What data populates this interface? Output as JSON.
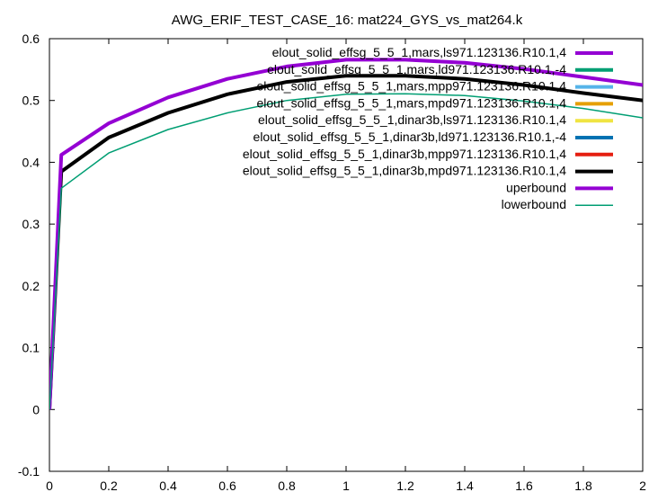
{
  "chart_data": {
    "type": "line",
    "title": "AWG_ERIF_TEST_CASE_16: mat224_GYS_vs_mat264.k",
    "xlabel": "",
    "ylabel": "",
    "xlim": [
      0,
      2
    ],
    "ylim": [
      -0.1,
      0.6
    ],
    "x_ticks": [
      0,
      0.2,
      0.4,
      0.6,
      0.8,
      1,
      1.2,
      1.4,
      1.6,
      1.8,
      2
    ],
    "x_tick_labels": [
      "0",
      "0.2",
      "0.4",
      "0.6",
      "0.8",
      "1",
      "1.2",
      "1.4",
      "1.6",
      "1.8",
      "2"
    ],
    "y_ticks": [
      -0.1,
      0,
      0.1,
      0.2,
      0.3,
      0.4,
      0.5,
      0.6
    ],
    "y_tick_labels": [
      "-0.1",
      "0",
      "0.1",
      "0.2",
      "0.3",
      "0.4",
      "0.5",
      "0.6"
    ],
    "grid": false,
    "legend_position": "top-right",
    "series": [
      {
        "name": "elout_solid_effsg_5_5_1,mars,ls971.123136.R10.1,4",
        "color": "#9400d3",
        "width": 4,
        "draw": false,
        "x": [
          0,
          0.04,
          0.2,
          0.4,
          0.6,
          0.8,
          1.0,
          1.2,
          1.4,
          1.6,
          1.8,
          2.0
        ],
        "y": [
          0,
          0.385,
          0.44,
          0.48,
          0.51,
          0.53,
          0.54,
          0.54,
          0.535,
          0.525,
          0.512,
          0.5
        ]
      },
      {
        "name": "elout_solid_effsg_5_5_1,mars,ld971.123136.R10.1,-4",
        "color": "#009e73",
        "width": 4,
        "draw": false,
        "x": [
          0,
          0.04,
          0.2,
          0.4,
          0.6,
          0.8,
          1.0,
          1.2,
          1.4,
          1.6,
          1.8,
          2.0
        ],
        "y": [
          0,
          0.385,
          0.44,
          0.48,
          0.51,
          0.53,
          0.54,
          0.54,
          0.535,
          0.525,
          0.512,
          0.5
        ]
      },
      {
        "name": "elout_solid_effsg_5_5_1,mars,mpp971.123136.R10.1,4",
        "color": "#56b4e9",
        "width": 4,
        "draw": false,
        "x": [
          0,
          0.04,
          0.2,
          0.4,
          0.6,
          0.8,
          1.0,
          1.2,
          1.4,
          1.6,
          1.8,
          2.0
        ],
        "y": [
          0,
          0.385,
          0.44,
          0.48,
          0.51,
          0.53,
          0.54,
          0.54,
          0.535,
          0.525,
          0.512,
          0.5
        ]
      },
      {
        "name": "elout_solid_effsg_5_5_1,mars,mpd971.123136.R10.1,4",
        "color": "#e69f00",
        "width": 4,
        "draw": false,
        "x": [
          0,
          0.04,
          0.2,
          0.4,
          0.6,
          0.8,
          1.0,
          1.2,
          1.4,
          1.6,
          1.8,
          2.0
        ],
        "y": [
          0,
          0.385,
          0.44,
          0.48,
          0.51,
          0.53,
          0.54,
          0.54,
          0.535,
          0.525,
          0.512,
          0.5
        ]
      },
      {
        "name": "elout_solid_effsg_5_5_1,dinar3b,ls971.123136.R10.1,4",
        "color": "#f0e442",
        "width": 4,
        "draw": false,
        "x": [
          0,
          0.04,
          0.2,
          0.4,
          0.6,
          0.8,
          1.0,
          1.2,
          1.4,
          1.6,
          1.8,
          2.0
        ],
        "y": [
          0,
          0.385,
          0.44,
          0.48,
          0.51,
          0.53,
          0.54,
          0.54,
          0.535,
          0.525,
          0.512,
          0.5
        ]
      },
      {
        "name": "elout_solid_effsg_5_5_1,dinar3b,ld971.123136.R10.1,-4",
        "color": "#0072b2",
        "width": 4,
        "draw": false,
        "x": [
          0,
          0.04,
          0.2,
          0.4,
          0.6,
          0.8,
          1.0,
          1.2,
          1.4,
          1.6,
          1.8,
          2.0
        ],
        "y": [
          0,
          0.385,
          0.44,
          0.48,
          0.51,
          0.53,
          0.54,
          0.54,
          0.535,
          0.525,
          0.512,
          0.5
        ]
      },
      {
        "name": "elout_solid_effsg_5_5_1,dinar3b,mpp971.123136.R10.1,4",
        "color": "#e51e10",
        "width": 4,
        "draw": false,
        "x": [
          0,
          0.04,
          0.2,
          0.4,
          0.6,
          0.8,
          1.0,
          1.2,
          1.4,
          1.6,
          1.8,
          2.0
        ],
        "y": [
          0,
          0.385,
          0.44,
          0.48,
          0.51,
          0.53,
          0.54,
          0.54,
          0.535,
          0.525,
          0.512,
          0.5
        ]
      },
      {
        "name": "elout_solid_effsg_5_5_1,dinar3b,mpd971.123136.R10.1,4",
        "color": "#000000",
        "width": 4,
        "draw": true,
        "x": [
          0,
          0.04,
          0.2,
          0.4,
          0.6,
          0.8,
          1.0,
          1.2,
          1.4,
          1.6,
          1.8,
          2.0
        ],
        "y": [
          0,
          0.385,
          0.44,
          0.48,
          0.51,
          0.53,
          0.54,
          0.54,
          0.535,
          0.525,
          0.512,
          0.5
        ]
      },
      {
        "name": "uperbound",
        "color": "#9400d3",
        "width": 4,
        "draw": true,
        "x": [
          0,
          0.04,
          0.2,
          0.4,
          0.6,
          0.8,
          1.0,
          1.2,
          1.4,
          1.6,
          1.8,
          2.0
        ],
        "y": [
          0,
          0.412,
          0.463,
          0.505,
          0.535,
          0.555,
          0.566,
          0.566,
          0.561,
          0.551,
          0.538,
          0.525
        ]
      },
      {
        "name": "lowerbound",
        "color": "#009e73",
        "width": 1.5,
        "draw": true,
        "x": [
          0,
          0.04,
          0.2,
          0.4,
          0.6,
          0.8,
          1.0,
          1.2,
          1.4,
          1.6,
          1.8,
          2.0
        ],
        "y": [
          0,
          0.358,
          0.415,
          0.453,
          0.48,
          0.5,
          0.51,
          0.511,
          0.508,
          0.499,
          0.487,
          0.472
        ]
      }
    ]
  }
}
